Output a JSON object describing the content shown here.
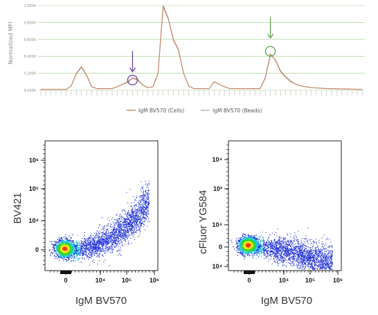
{
  "chart_data": [
    {
      "type": "line",
      "ylabel": "Normalized MFI",
      "ylim": [
        0,
        1
      ],
      "y_ticks": [
        "0.0000",
        "0.2000",
        "0.4000",
        "0.6000",
        "0.8000",
        "1.0000"
      ],
      "grid": true,
      "legend_position": "bottom",
      "x_channel_count": 64,
      "series": [
        {
          "name": "IgM BV570 (Cells)",
          "color": "#c98a6a",
          "points": [
            [
              0,
              0.01
            ],
            [
              5,
              0.01
            ],
            [
              6,
              0.05
            ],
            [
              7,
              0.2
            ],
            [
              8,
              0.28
            ],
            [
              9,
              0.18
            ],
            [
              10,
              0.04
            ],
            [
              11,
              0.02
            ],
            [
              14,
              0.02
            ],
            [
              15,
              0.04
            ],
            [
              16,
              0.07
            ],
            [
              17,
              0.09
            ],
            [
              18,
              0.14
            ],
            [
              19,
              0.12
            ],
            [
              20,
              0.06
            ],
            [
              21,
              0.03
            ],
            [
              22,
              0.04
            ],
            [
              23,
              0.2
            ],
            [
              24,
              1.0
            ],
            [
              25,
              0.85
            ],
            [
              26,
              0.6
            ],
            [
              27,
              0.48
            ],
            [
              28,
              0.2
            ],
            [
              29,
              0.05
            ],
            [
              30,
              0.02
            ],
            [
              33,
              0.02
            ],
            [
              34,
              0.1
            ],
            [
              35,
              0.07
            ],
            [
              36,
              0.04
            ],
            [
              37,
              0.02
            ],
            [
              43,
              0.02
            ],
            [
              44,
              0.15
            ],
            [
              45,
              0.43
            ],
            [
              46,
              0.35
            ],
            [
              47,
              0.22
            ],
            [
              48,
              0.15
            ],
            [
              49,
              0.1
            ],
            [
              50,
              0.07
            ],
            [
              51,
              0.05
            ],
            [
              53,
              0.03
            ],
            [
              56,
              0.02
            ],
            [
              63,
              0.01
            ]
          ]
        },
        {
          "name": "IgM BV570 (Beads)",
          "color": "#b5b5b5",
          "points": [
            [
              0,
              0.01
            ],
            [
              5,
              0.01
            ],
            [
              6,
              0.05
            ],
            [
              7,
              0.19
            ],
            [
              8,
              0.27
            ],
            [
              9,
              0.17
            ],
            [
              10,
              0.04
            ],
            [
              11,
              0.02
            ],
            [
              14,
              0.02
            ],
            [
              15,
              0.04
            ],
            [
              16,
              0.07
            ],
            [
              17,
              0.1
            ],
            [
              18,
              0.15
            ],
            [
              19,
              0.13
            ],
            [
              20,
              0.06
            ],
            [
              21,
              0.03
            ],
            [
              22,
              0.04
            ],
            [
              23,
              0.2
            ],
            [
              24,
              0.98
            ],
            [
              25,
              0.84
            ],
            [
              26,
              0.59
            ],
            [
              27,
              0.47
            ],
            [
              28,
              0.2
            ],
            [
              29,
              0.05
            ],
            [
              30,
              0.02
            ],
            [
              33,
              0.02
            ],
            [
              34,
              0.1
            ],
            [
              35,
              0.07
            ],
            [
              36,
              0.04
            ],
            [
              37,
              0.02
            ],
            [
              43,
              0.02
            ],
            [
              44,
              0.14
            ],
            [
              45,
              0.41
            ],
            [
              46,
              0.36
            ],
            [
              47,
              0.23
            ],
            [
              48,
              0.16
            ],
            [
              49,
              0.11
            ],
            [
              50,
              0.07
            ],
            [
              51,
              0.05
            ],
            [
              53,
              0.03
            ],
            [
              56,
              0.02
            ],
            [
              63,
              0.01
            ]
          ]
        }
      ],
      "annotations": [
        {
          "type": "circle",
          "color": "#6a3d9a",
          "x_channel": 18,
          "y": 0.12
        },
        {
          "type": "arrow",
          "color": "#6a3d9a",
          "x_channel": 18,
          "y": 0.2
        },
        {
          "type": "circle",
          "color": "#5aa04a",
          "x_channel": 45,
          "y": 0.46
        },
        {
          "type": "arrow",
          "color": "#5aa04a",
          "x_channel": 45,
          "y": 0.6
        }
      ]
    },
    {
      "type": "scatter",
      "xlabel": "IgM BV570",
      "ylabel": "BV421",
      "x_ticks": [
        "0",
        "10⁴",
        "10⁵",
        "10⁶"
      ],
      "y_ticks": [
        "10⁶",
        "10⁵",
        "10⁴",
        "0"
      ],
      "colormap": [
        "#1a2bd6",
        "#18c2e8",
        "#2ed62a",
        "#f2e31b",
        "#f03c14"
      ],
      "population_shape": "cluster at origin with a rising diagonal tail toward high IgM BV570"
    },
    {
      "type": "scatter",
      "xlabel": "IgM BV570",
      "ylabel": "cFluor YG584",
      "x_ticks": [
        "0",
        "10⁴",
        "10⁵",
        "10⁶"
      ],
      "y_ticks": [
        "10⁴",
        "10³",
        "10⁴",
        "0",
        "10⁴"
      ],
      "colormap": [
        "#1a2bd6",
        "#18c2e8",
        "#2ed62a",
        "#f2e31b",
        "#f03c14"
      ],
      "population_shape": "cluster at origin with a descending tail toward high IgM BV570"
    }
  ]
}
